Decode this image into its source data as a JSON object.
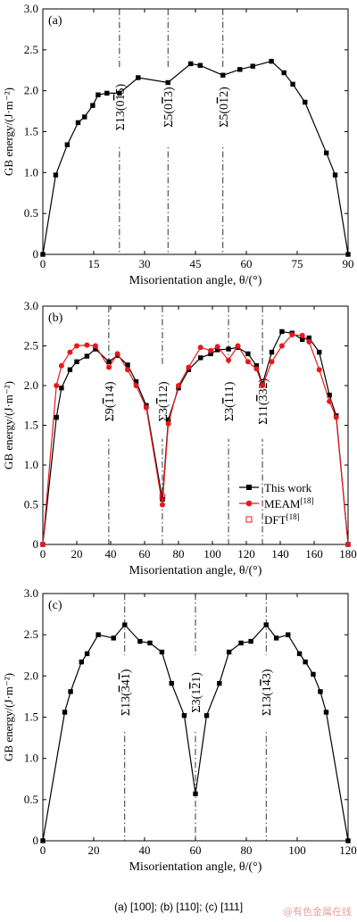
{
  "caption": "(a) [100]; (b) [110]; (c) [111]",
  "watermark": "@有色金属在线",
  "chart_data": [
    {
      "type": "line",
      "panel_label": "(a)",
      "xlabel": "Misorientation angle, θ/(°)",
      "ylabel": "GB energy/(J·m⁻²)",
      "xlim": [
        0,
        90
      ],
      "ylim": [
        0,
        3.0
      ],
      "xticks": [
        0,
        15,
        30,
        45,
        60,
        75,
        90
      ],
      "yticks": [
        0,
        0.5,
        1.0,
        1.5,
        2.0,
        2.5,
        3.0
      ],
      "vlines": [
        {
          "x": 22.6,
          "label": "Σ13(0$\\bar{1}$5)"
        },
        {
          "x": 36.9,
          "label": "Σ5(0$\\bar{1}$3)"
        },
        {
          "x": 53.1,
          "label": "Σ5(0$\\bar{1}$2)"
        }
      ],
      "series": [
        {
          "color": "#000000",
          "marker": "square",
          "x": [
            0,
            3.8,
            7.2,
            10.4,
            12.3,
            14.7,
            16.3,
            18.9,
            22.6,
            28.1,
            36.9,
            43.6,
            46.4,
            53.1,
            58.1,
            61.9,
            67.4,
            71.1,
            73.7,
            77.3,
            83.6,
            86.2,
            90
          ],
          "y": [
            0,
            0.97,
            1.34,
            1.61,
            1.68,
            1.82,
            1.95,
            1.97,
            1.97,
            2.16,
            2.1,
            2.33,
            2.31,
            2.19,
            2.26,
            2.3,
            2.36,
            2.22,
            2.08,
            1.86,
            1.24,
            0.97,
            0
          ]
        }
      ]
    },
    {
      "type": "line",
      "panel_label": "(b)",
      "xlabel": "Misorientation angle, θ/(°)",
      "ylabel": "GB energy/(J·m⁻²)",
      "xlim": [
        0,
        180
      ],
      "ylim": [
        0,
        3.0
      ],
      "xticks": [
        0,
        20,
        40,
        60,
        80,
        100,
        120,
        140,
        160,
        180
      ],
      "yticks": [
        0,
        0.5,
        1.0,
        1.5,
        2.0,
        2.5,
        3.0
      ],
      "vlines": [
        {
          "x": 38.9,
          "label": "Σ9($\\bar{1}$14)"
        },
        {
          "x": 70.5,
          "label": "Σ3($\\bar{1}$12)"
        },
        {
          "x": 109.5,
          "label": "Σ3($\\bar{1}$11)"
        },
        {
          "x": 129.5,
          "label": "Σ11($\\bar{3}$32)"
        }
      ],
      "legend": {
        "position": "lower-right",
        "entries": [
          "This work",
          "MEAM$^{[18]}$",
          "DFT$^{[18]}$"
        ]
      },
      "series": [
        {
          "name": "This work",
          "color": "#000000",
          "marker": "square",
          "x": [
            0,
            8,
            11,
            16,
            20,
            26,
            31,
            39,
            44,
            50,
            55,
            61,
            70.5,
            74,
            80,
            86,
            93,
            99,
            103,
            109.5,
            115,
            121,
            126,
            129.5,
            135,
            141,
            147,
            153,
            157,
            163,
            169,
            173,
            180
          ],
          "y": [
            0,
            1.6,
            1.97,
            2.2,
            2.3,
            2.37,
            2.46,
            2.3,
            2.38,
            2.26,
            2.05,
            1.75,
            0.57,
            1.57,
            1.97,
            2.2,
            2.35,
            2.4,
            2.45,
            2.46,
            2.48,
            2.4,
            2.25,
            2.02,
            2.42,
            2.68,
            2.66,
            2.58,
            2.6,
            2.42,
            1.88,
            1.62,
            0
          ]
        },
        {
          "name": "MEAM[18]",
          "color": "#e41a1c",
          "marker": "circle",
          "x": [
            0,
            8,
            11,
            16,
            20,
            26,
            31,
            39,
            44,
            50,
            55,
            61,
            70.5,
            74,
            80,
            86,
            93,
            99,
            103,
            109.5,
            115,
            121,
            126,
            129.5,
            135,
            141,
            147,
            153,
            157,
            163,
            169,
            173,
            180
          ],
          "y": [
            0,
            2.0,
            2.25,
            2.42,
            2.5,
            2.51,
            2.5,
            2.23,
            2.4,
            2.2,
            2.0,
            1.72,
            0.5,
            1.52,
            2.0,
            2.23,
            2.48,
            2.44,
            2.49,
            2.32,
            2.5,
            2.3,
            2.21,
            2.0,
            2.3,
            2.5,
            2.64,
            2.63,
            2.55,
            2.2,
            1.8,
            1.6,
            0
          ]
        },
        {
          "name": "DFT[18]",
          "color": "#e41a1c",
          "marker": "open-square",
          "x": [
            70.5
          ],
          "y": [
            0.6
          ]
        }
      ]
    },
    {
      "type": "line",
      "panel_label": "(c)",
      "xlabel": "Misorientation angle, θ/(°)",
      "ylabel": "GB energy/(J·m⁻²)",
      "xlim": [
        0,
        120
      ],
      "ylim": [
        0,
        3.0
      ],
      "xticks": [
        0,
        20,
        40,
        60,
        80,
        100,
        120
      ],
      "yticks": [
        0,
        0.5,
        1.0,
        1.5,
        2.0,
        2.5,
        3.0
      ],
      "vlines": [
        {
          "x": 32.2,
          "label": "Σ13($\\bar{3}$4$\\bar{1}$)"
        },
        {
          "x": 60,
          "label": "Σ3(1$\\bar{2}$1)"
        },
        {
          "x": 87.8,
          "label": "Σ13(1$\\bar{4}$3)"
        }
      ],
      "series": [
        {
          "color": "#000000",
          "marker": "square",
          "x": [
            0,
            8.6,
            10.9,
            15.2,
            17.4,
            21.8,
            27.8,
            32.2,
            38.2,
            42.1,
            46.8,
            50.6,
            55.6,
            60,
            64.4,
            69.4,
            73.2,
            77.9,
            81.8,
            87.8,
            91.8,
            96.4,
            100.9,
            103.2,
            106.3,
            109.1,
            111.4,
            120
          ],
          "y": [
            0,
            1.56,
            1.81,
            2.17,
            2.27,
            2.5,
            2.46,
            2.62,
            2.42,
            2.4,
            2.29,
            1.91,
            1.52,
            0.57,
            1.52,
            1.91,
            2.29,
            2.4,
            2.42,
            2.62,
            2.46,
            2.5,
            2.27,
            2.17,
            2.02,
            1.81,
            1.56,
            0
          ]
        }
      ]
    }
  ]
}
